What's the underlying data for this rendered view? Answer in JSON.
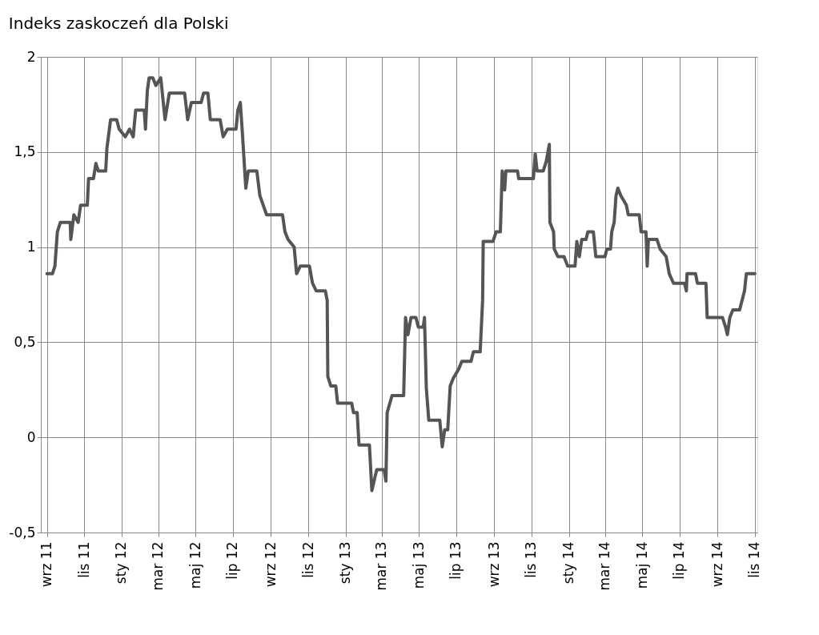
{
  "chart_data": {
    "type": "line",
    "title": "Indeks zaskoczeń dla Polski",
    "x": [
      "2011-09-01",
      "2011-09-10",
      "2011-09-14",
      "2011-09-18",
      "2011-09-23",
      "2011-10-09",
      "2011-10-10",
      "2011-10-15",
      "2011-10-22",
      "2011-10-26",
      "2011-11-06",
      "2011-11-08",
      "2011-11-16",
      "2011-11-20",
      "2011-11-24",
      "2011-12-06",
      "2011-12-08",
      "2011-12-14",
      "2011-12-24",
      "2011-12-28",
      "2012-01-07",
      "2012-01-14",
      "2012-01-20",
      "2012-01-24",
      "2012-02-07",
      "2012-02-09",
      "2012-02-12",
      "2012-02-15",
      "2012-02-21",
      "2012-02-26",
      "2012-03-05",
      "2012-03-12",
      "2012-03-19",
      "2012-04-13",
      "2012-04-18",
      "2012-04-24",
      "2012-05-10",
      "2012-05-14",
      "2012-05-21",
      "2012-05-25",
      "2012-06-10",
      "2012-06-15",
      "2012-06-22",
      "2012-07-06",
      "2012-07-09",
      "2012-07-13",
      "2012-07-16",
      "2012-07-22",
      "2012-07-26",
      "2012-08-09",
      "2012-08-14",
      "2012-08-25",
      "2012-09-20",
      "2012-09-24",
      "2012-09-29",
      "2012-10-09",
      "2012-10-13",
      "2012-10-19",
      "2012-11-03",
      "2012-11-08",
      "2012-11-14",
      "2012-11-29",
      "2012-12-02",
      "2012-12-03",
      "2012-12-08",
      "2012-12-16",
      "2012-12-19",
      "2013-01-11",
      "2013-01-14",
      "2013-01-20",
      "2013-01-23",
      "2013-02-09",
      "2013-02-13",
      "2013-02-18",
      "2013-02-21",
      "2013-03-05",
      "2013-03-08",
      "2013-03-10",
      "2013-03-18",
      "2013-04-06",
      "2013-04-09",
      "2013-04-13",
      "2013-04-18",
      "2013-04-26",
      "2013-04-30",
      "2013-05-08",
      "2013-05-10",
      "2013-05-13",
      "2013-05-17",
      "2013-06-04",
      "2013-06-08",
      "2013-06-12",
      "2013-06-17",
      "2013-06-21",
      "2013-06-26",
      "2013-07-05",
      "2013-07-10",
      "2013-07-25",
      "2013-07-29",
      "2013-08-09",
      "2013-08-13",
      "2013-08-14",
      "2013-08-30",
      "2013-09-04",
      "2013-09-11",
      "2013-09-14",
      "2013-09-18",
      "2013-09-20",
      "2013-10-09",
      "2013-10-11",
      "2013-11-04",
      "2013-11-07",
      "2013-11-10",
      "2013-11-20",
      "2013-11-25",
      "2013-11-30",
      "2013-12-01",
      "2013-12-07",
      "2013-12-08",
      "2013-12-14",
      "2013-12-24",
      "2013-12-30",
      "2014-01-11",
      "2014-01-14",
      "2014-01-18",
      "2014-01-22",
      "2014-01-29",
      "2014-02-01",
      "2014-02-10",
      "2014-02-14",
      "2014-03-01",
      "2014-03-04",
      "2014-03-10",
      "2014-03-12",
      "2014-03-16",
      "2014-03-19",
      "2014-03-22",
      "2014-03-27",
      "2014-04-05",
      "2014-04-08",
      "2014-04-26",
      "2014-04-29",
      "2014-05-07",
      "2014-05-09",
      "2014-05-11",
      "2014-05-25",
      "2014-05-30",
      "2014-06-09",
      "2014-06-14",
      "2014-06-21",
      "2014-07-09",
      "2014-07-12",
      "2014-07-13",
      "2014-07-27",
      "2014-07-30",
      "2014-08-13",
      "2014-08-15",
      "2014-09-09",
      "2014-09-14",
      "2014-09-17",
      "2014-09-21",
      "2014-09-26",
      "2014-10-07",
      "2014-10-11",
      "2014-10-15",
      "2014-10-18",
      "2014-11-01"
    ],
    "series": [
      {
        "color": "#555555",
        "values": [
          0.86,
          0.86,
          0.9,
          1.08,
          1.13,
          1.13,
          1.04,
          1.17,
          1.13,
          1.22,
          1.22,
          1.36,
          1.36,
          1.44,
          1.4,
          1.4,
          1.52,
          1.67,
          1.67,
          1.62,
          1.58,
          1.62,
          1.58,
          1.72,
          1.72,
          1.62,
          1.82,
          1.89,
          1.89,
          1.85,
          1.89,
          1.67,
          1.81,
          1.81,
          1.67,
          1.76,
          1.76,
          1.81,
          1.81,
          1.67,
          1.67,
          1.58,
          1.62,
          1.62,
          1.72,
          1.76,
          1.62,
          1.31,
          1.4,
          1.4,
          1.27,
          1.17,
          1.17,
          1.08,
          1.04,
          1.0,
          0.86,
          0.9,
          0.9,
          0.81,
          0.77,
          0.77,
          0.72,
          0.32,
          0.27,
          0.27,
          0.18,
          0.18,
          0.13,
          0.13,
          -0.04,
          -0.04,
          -0.28,
          -0.21,
          -0.17,
          -0.17,
          -0.23,
          0.13,
          0.22,
          0.22,
          0.63,
          0.54,
          0.63,
          0.63,
          0.58,
          0.58,
          0.63,
          0.26,
          0.09,
          0.09,
          -0.05,
          0.04,
          0.04,
          0.27,
          0.31,
          0.36,
          0.4,
          0.4,
          0.45,
          0.45,
          0.72,
          1.03,
          1.03,
          1.08,
          1.08,
          1.4,
          1.3,
          1.4,
          1.4,
          1.36,
          1.36,
          1.49,
          1.4,
          1.4,
          1.45,
          1.54,
          1.13,
          1.08,
          0.99,
          0.95,
          0.95,
          0.9,
          0.9,
          1.03,
          0.95,
          1.04,
          1.04,
          1.08,
          1.08,
          0.95,
          0.95,
          0.99,
          0.99,
          1.08,
          1.13,
          1.27,
          1.31,
          1.27,
          1.22,
          1.17,
          1.17,
          1.08,
          1.08,
          0.9,
          1.04,
          1.04,
          0.99,
          0.95,
          0.86,
          0.81,
          0.81,
          0.77,
          0.86,
          0.86,
          0.81,
          0.81,
          0.63,
          0.63,
          0.58,
          0.54,
          0.63,
          0.67,
          0.67,
          0.72,
          0.77,
          0.86,
          0.86
        ]
      }
    ],
    "xlim": [
      "2011-08-22",
      "2014-11-05"
    ],
    "xticks": [
      {
        "value": "2011-09-01",
        "label": "wrz 11"
      },
      {
        "value": "2011-11-01",
        "label": "lis 11"
      },
      {
        "value": "2012-01-01",
        "label": "sty 12"
      },
      {
        "value": "2012-03-01",
        "label": "mar 12"
      },
      {
        "value": "2012-05-01",
        "label": "maj 12"
      },
      {
        "value": "2012-07-01",
        "label": "lip 12"
      },
      {
        "value": "2012-09-01",
        "label": "wrz 12"
      },
      {
        "value": "2012-11-01",
        "label": "lis 12"
      },
      {
        "value": "2013-01-01",
        "label": "sty 13"
      },
      {
        "value": "2013-03-01",
        "label": "mar 13"
      },
      {
        "value": "2013-05-01",
        "label": "maj 13"
      },
      {
        "value": "2013-07-01",
        "label": "lip 13"
      },
      {
        "value": "2013-09-01",
        "label": "wrz 13"
      },
      {
        "value": "2013-11-01",
        "label": "lis 13"
      },
      {
        "value": "2014-01-01",
        "label": "sty 14"
      },
      {
        "value": "2014-03-01",
        "label": "mar 14"
      },
      {
        "value": "2014-05-01",
        "label": "maj 14"
      },
      {
        "value": "2014-07-01",
        "label": "lip 14"
      },
      {
        "value": "2014-09-01",
        "label": "wrz 14"
      },
      {
        "value": "2014-11-01",
        "label": "lis 14"
      }
    ],
    "ylim": [
      -0.5,
      2
    ],
    "yticks": [
      {
        "value": -0.5,
        "label": "-0,5"
      },
      0,
      {
        "value": 0.5,
        "label": "0,5"
      },
      1,
      {
        "value": 1.5,
        "label": "1,5"
      },
      2
    ],
    "grid": true,
    "line_style": "solid",
    "marker": "none"
  }
}
